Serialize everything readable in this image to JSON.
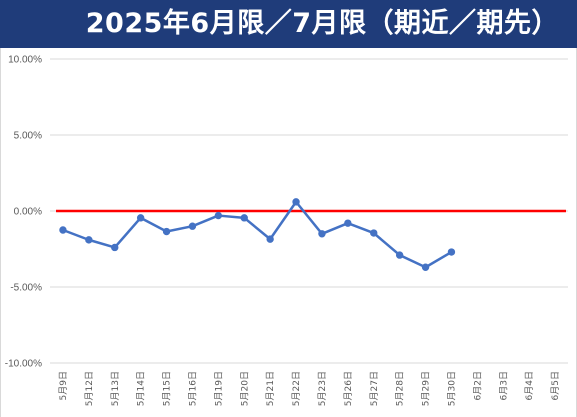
{
  "chart_data": {
    "type": "line",
    "title": "2025年6月限／7月限（期近／期先）",
    "categories": [
      "5月9日",
      "5月12日",
      "5月13日",
      "5月14日",
      "5月15日",
      "5月16日",
      "5月19日",
      "5月20日",
      "5月21日",
      "5月22日",
      "5月23日",
      "5月26日",
      "5月27日",
      "5月28日",
      "5月29日",
      "5月30日",
      "6月2日",
      "6月3日",
      "6月4日",
      "6月5日"
    ],
    "series": [
      {
        "values": [
          -1.25,
          -1.9,
          -2.4,
          -0.45,
          -1.35,
          -1.0,
          -0.3,
          -0.45,
          -1.85,
          0.6,
          -1.5,
          -0.8,
          -1.45,
          -2.9,
          -3.7,
          -2.7,
          null,
          null,
          null,
          null
        ],
        "color": "#4472c4"
      }
    ],
    "reference_line": {
      "value": 0,
      "color": "#ff0000"
    },
    "ylim": [
      -10,
      10
    ],
    "yticks": [
      10,
      5,
      0,
      -5,
      -10
    ],
    "ytick_labels": [
      "10.00%",
      "5.00%",
      "0.00%",
      "-5.00%",
      "-10.00%"
    ],
    "grid": true,
    "legend": "none"
  }
}
